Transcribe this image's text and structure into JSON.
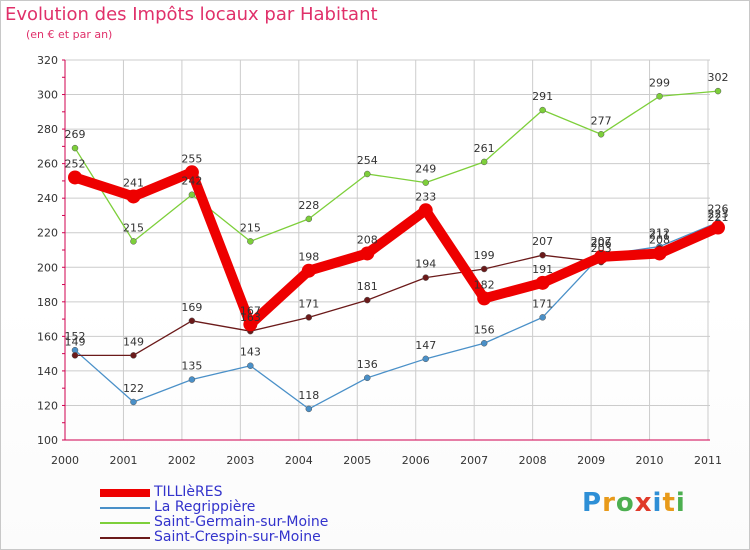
{
  "title": "Evolution des Impôts locaux par Habitant",
  "subtitle": "(en € et par an)",
  "brand": {
    "text": "Proxiti",
    "letters": [
      "P",
      "r",
      "o",
      "x",
      "i",
      "t",
      "i"
    ],
    "colors": [
      "#2e8fd6",
      "#e89a1a",
      "#4caf50",
      "#e03a2a",
      "#2e8fd6",
      "#e89a1a",
      "#4caf50"
    ]
  },
  "colors": {
    "title": "#e0306a",
    "grid": "#cccccc",
    "axis": "#d0004f"
  },
  "chart_data": {
    "type": "line",
    "title": "Evolution des Impôts locaux par Habitant",
    "ylabel": "(en € et par an)",
    "categories": [
      "2000",
      "2001",
      "2002",
      "2003",
      "2004",
      "2005",
      "2006",
      "2007",
      "2008",
      "2009",
      "2010",
      "2011"
    ],
    "ylim": [
      100,
      320
    ],
    "yticks": [
      100,
      120,
      140,
      160,
      180,
      200,
      220,
      240,
      260,
      280,
      300,
      320
    ],
    "series": [
      {
        "name": "Saint-Germain-sur-Moine",
        "color": "#7dcf3a",
        "weight": "thin",
        "values": [
          269,
          215,
          242,
          215,
          228,
          254,
          249,
          261,
          291,
          277,
          299,
          302
        ]
      },
      {
        "name": "La Regrippière",
        "color": "#4a90c8",
        "weight": "thin",
        "values": [
          152,
          122,
          135,
          143,
          118,
          136,
          147,
          156,
          171,
          207,
          212,
          226
        ]
      },
      {
        "name": "Saint-Crespin-sur-Moine",
        "color": "#6b1a1a",
        "weight": "thin",
        "values": [
          149,
          149,
          169,
          163,
          171,
          181,
          194,
          199,
          207,
          203,
          211,
          221
        ]
      },
      {
        "name": "TILLIèRES",
        "color": "#ee0000",
        "weight": "thick",
        "values": [
          252,
          241,
          255,
          167,
          198,
          208,
          233,
          182,
          191,
          206,
          208,
          223
        ]
      }
    ],
    "legend": [
      "TILLIèRES",
      "La Regrippière",
      "Saint-Germain-sur-Moine",
      "Saint-Crespin-sur-Moine"
    ]
  }
}
